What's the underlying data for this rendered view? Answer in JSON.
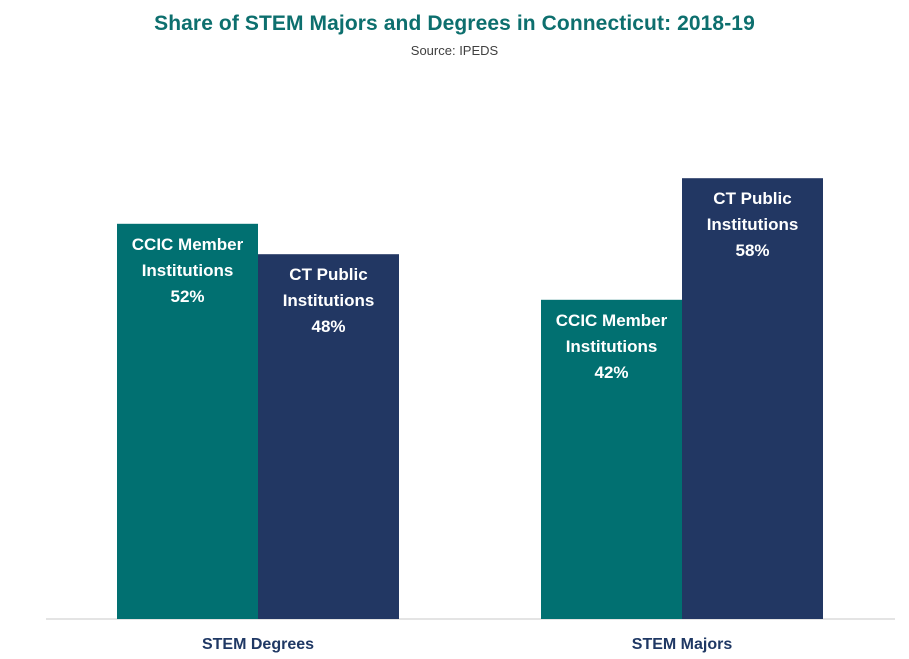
{
  "colors": {
    "ccic": "#017071",
    "public": "#223763",
    "title": "#0d6f6e",
    "axis_line": "#c8c8c8"
  },
  "chart_data": {
    "type": "bar",
    "title": "Share of STEM Majors and Degrees in Connecticut: 2018-19",
    "subtitle": "Source: IPEDS",
    "categories": [
      "STEM Degrees",
      "STEM Majors"
    ],
    "series": [
      {
        "label_lines": [
          "CCIC Member",
          "Institutions"
        ],
        "values": [
          52,
          42
        ],
        "value_labels": [
          "52%",
          "42%"
        ],
        "color": "#017071"
      },
      {
        "label_lines": [
          "CT Public",
          "Institutions"
        ],
        "values": [
          48,
          58
        ],
        "value_labels": [
          "48%",
          "58%"
        ],
        "color": "#223763"
      }
    ],
    "ylim": [
      0,
      100
    ],
    "grid": false,
    "legend": "none"
  }
}
